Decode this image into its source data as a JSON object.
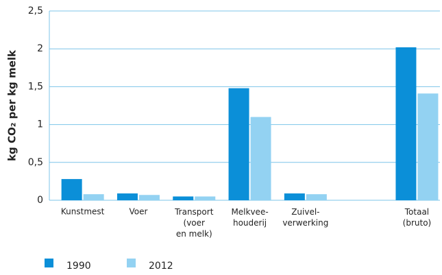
{
  "chart_data": {
    "type": "bar",
    "y_label": "kg CO₂ per kg melk",
    "categories": [
      "Kunstmest",
      "Voer",
      "Transport\n(voer\nen melk)",
      "Melkvee-\nhouderij",
      "Zuivel-\nverwerking",
      null,
      "Totaal\n(bruto)"
    ],
    "series": [
      {
        "name": "1990",
        "color": "#0b8fd8",
        "values": [
          0.28,
          0.09,
          0.05,
          1.48,
          0.09,
          null,
          2.02
        ]
      },
      {
        "name": "2012",
        "color": "#93d2f2",
        "values": [
          0.08,
          0.07,
          0.05,
          1.1,
          0.08,
          null,
          1.41
        ]
      }
    ],
    "ylim": [
      0,
      2.5
    ],
    "yticks": [
      0,
      {
        "value": 0.5,
        "label": "0,5"
      },
      1,
      {
        "value": 1.5,
        "label": "1,5"
      },
      2,
      {
        "value": 2.5,
        "label": "2,5"
      }
    ],
    "grid": true,
    "grid_color": "#7cc4e8",
    "legend": "bottom"
  }
}
